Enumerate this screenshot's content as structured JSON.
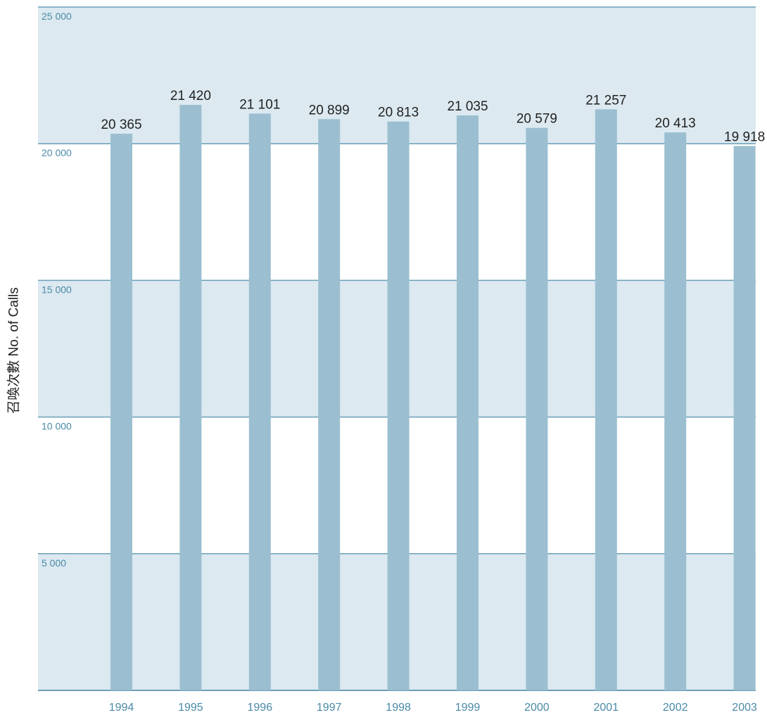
{
  "chart_data": {
    "type": "bar",
    "categories": [
      "1994",
      "1995",
      "1996",
      "1997",
      "1998",
      "1999",
      "2000",
      "2001",
      "2002",
      "2003"
    ],
    "values": [
      20365,
      21420,
      21101,
      20899,
      20813,
      21035,
      20579,
      21257,
      20413,
      19918
    ],
    "value_labels": [
      "20 365",
      "21 420",
      "21 101",
      "20 899",
      "20 813",
      "21 035",
      "20 579",
      "21 257",
      "20 413",
      "19 918"
    ],
    "ylabel": "召喚次數  No. of Calls",
    "ylim": [
      0,
      25000
    ],
    "yticks": [
      5000,
      10000,
      15000,
      20000,
      25000
    ],
    "ytick_labels": [
      "5 000",
      "10 000",
      "15 000",
      "20 000",
      "25 000"
    ],
    "grid": true,
    "colors": {
      "bar": "#9bbfd0",
      "band": "#dce9f0",
      "gridline": "#6a9fb8",
      "tick_label": "#4a8aa8",
      "value_label": "#222222"
    }
  }
}
